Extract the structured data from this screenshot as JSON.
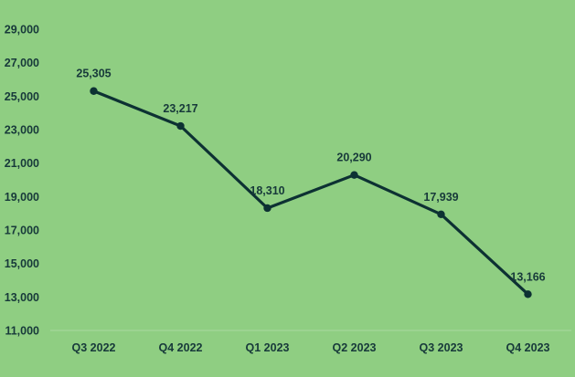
{
  "chart_data": {
    "type": "line",
    "categories": [
      "Q3 2022",
      "Q4 2022",
      "Q1 2023",
      "Q2 2023",
      "Q3 2023",
      "Q4 2023"
    ],
    "series": [
      {
        "values": [
          25305,
          23217,
          18310,
          20290,
          17939,
          13166
        ]
      }
    ],
    "data_labels": [
      "25,305",
      "23,217",
      "18,310",
      "20,290",
      "17,939",
      "13,166"
    ],
    "ylim": [
      11000,
      29000
    ],
    "yticks": [
      11000,
      13000,
      15000,
      17000,
      19000,
      21000,
      23000,
      25000,
      27000,
      29000
    ],
    "ytick_labels": [
      "11,000",
      "13,000",
      "15,000",
      "17,000",
      "19,000",
      "21,000",
      "23,000",
      "25,000",
      "27,000",
      "29,000"
    ],
    "grid": false,
    "line_color": "#0d3133",
    "background_color": "#8fce82",
    "axis_color": "#a8d8a0",
    "text_color": "#17393a"
  }
}
